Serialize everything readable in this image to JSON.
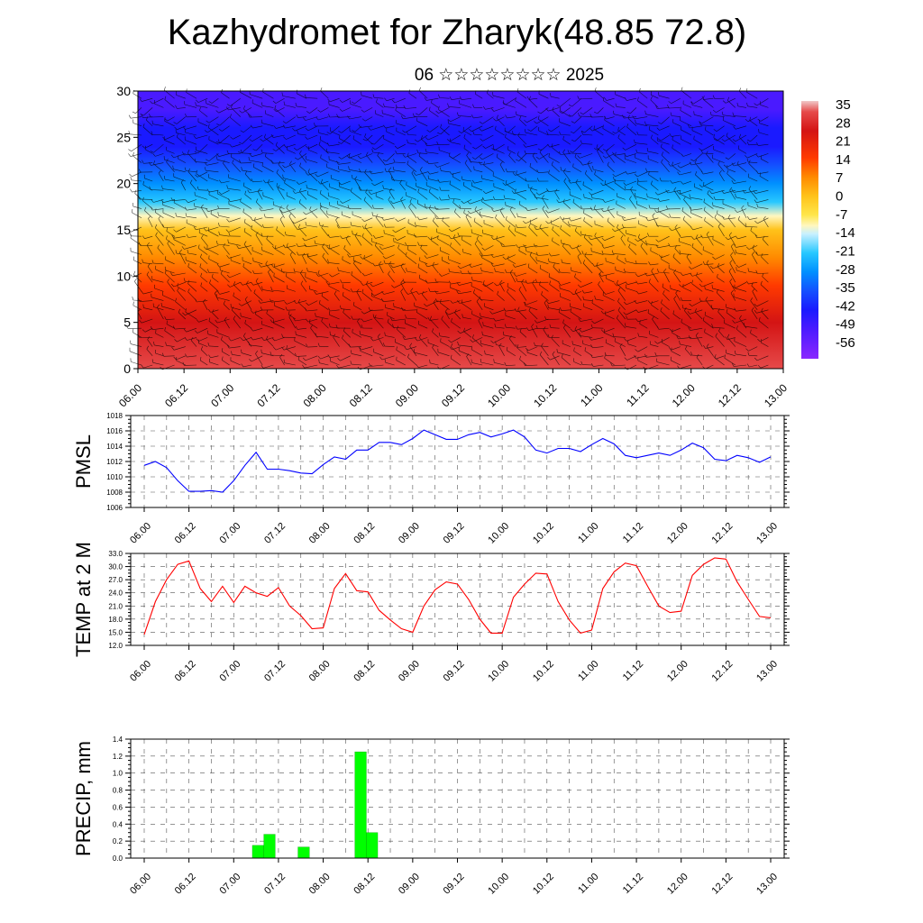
{
  "title": "Kazhydromet for Zharyk(48.85 72.8)",
  "subtitle": "06 ☆☆☆☆☆☆☆☆ 2025",
  "x_tick_labels": [
    "06.00",
    "06.12",
    "07.00",
    "07.12",
    "08.00",
    "08.12",
    "09.00",
    "09.12",
    "10.00",
    "10.12",
    "11.00",
    "11.12",
    "12.00",
    "12.12",
    "13.00"
  ],
  "chart_data": [
    {
      "type": "heatmap",
      "title": "",
      "ylim": [
        0,
        30
      ],
      "y_ticks": [
        0,
        5,
        10,
        15,
        20,
        25,
        30
      ],
      "colorbar": {
        "labels": [
          "35",
          "28",
          "21",
          "14",
          "7",
          "0",
          "-7",
          "-14",
          "-21",
          "-28",
          "-35",
          "-42",
          "-49",
          "-56"
        ],
        "stops": [
          {
            "v": 35,
            "c": "#f0c8c8"
          },
          {
            "v": 31,
            "c": "#e64a4a"
          },
          {
            "v": 24,
            "c": "#d41414"
          },
          {
            "v": 14,
            "c": "#ff3a00"
          },
          {
            "v": 7,
            "c": "#ff8a00"
          },
          {
            "v": 0,
            "c": "#ffc21a"
          },
          {
            "v": -7,
            "c": "#ffe64a"
          },
          {
            "v": -11,
            "c": "#fff7c0"
          },
          {
            "v": -14,
            "c": "#c8f0ff"
          },
          {
            "v": -21,
            "c": "#28c8ff"
          },
          {
            "v": -28,
            "c": "#0090ff"
          },
          {
            "v": -35,
            "c": "#1450ff"
          },
          {
            "v": -42,
            "c": "#1a1aff"
          },
          {
            "v": -49,
            "c": "#4a1aff"
          },
          {
            "v": -60,
            "c": "#8a28ff"
          }
        ]
      },
      "temperature_profile": [
        {
          "height": 0,
          "value": 24
        },
        {
          "height": 5,
          "value": 18
        },
        {
          "height": 9,
          "value": 10
        },
        {
          "height": 12,
          "value": 0
        },
        {
          "height": 15,
          "value": -7
        },
        {
          "height": 16.5,
          "value": -14
        },
        {
          "height": 18,
          "value": -24
        },
        {
          "height": 20,
          "value": -32
        },
        {
          "height": 22,
          "value": -40
        },
        {
          "height": 24,
          "value": -49
        },
        {
          "height": 26,
          "value": -48
        },
        {
          "height": 28,
          "value": -52
        },
        {
          "height": 30,
          "value": -58
        }
      ]
    },
    {
      "type": "line",
      "ylabel": "PMSL",
      "ylim": [
        1006,
        1018
      ],
      "y_ticks": [
        "1006",
        "1008",
        "1010",
        "1012",
        "1014",
        "1016",
        "1018"
      ],
      "color": "#0000ff",
      "values": [
        1011.5,
        1012.0,
        1011.2,
        1009.5,
        1008.1,
        1008.1,
        1008.2,
        1008.0,
        1009.5,
        1011.5,
        1013.2,
        1011.0,
        1011.0,
        1010.8,
        1010.5,
        1010.4,
        1011.6,
        1012.6,
        1012.3,
        1013.5,
        1013.5,
        1014.5,
        1014.5,
        1014.2,
        1015.0,
        1016.1,
        1015.5,
        1014.9,
        1014.9,
        1015.5,
        1015.8,
        1015.2,
        1015.6,
        1016.1,
        1015.2,
        1013.5,
        1013.1,
        1013.7,
        1013.7,
        1013.3,
        1014.2,
        1015.0,
        1014.3,
        1012.8,
        1012.5,
        1012.8,
        1013.1,
        1012.8,
        1013.5,
        1014.4,
        1013.8,
        1012.3,
        1012.1,
        1012.8,
        1012.5,
        1011.9,
        1012.6
      ]
    },
    {
      "type": "line",
      "ylabel": "TEMP at 2 M",
      "ylim": [
        12,
        33
      ],
      "y_ticks": [
        "12.0",
        "15.0",
        "18.0",
        "21.0",
        "24.0",
        "27.0",
        "30.0",
        "33.0"
      ],
      "color": "#ff0000",
      "values": [
        14.5,
        22.0,
        27.0,
        30.5,
        31.3,
        25.0,
        22.0,
        25.5,
        21.8,
        25.5,
        24.0,
        23.2,
        25.2,
        21.0,
        18.8,
        15.8,
        16.0,
        25.0,
        28.4,
        24.5,
        24.2,
        20.0,
        17.8,
        15.8,
        15.0,
        21.0,
        24.7,
        26.5,
        26.0,
        22.5,
        18.0,
        14.8,
        14.8,
        23.0,
        26.0,
        28.5,
        28.3,
        22.0,
        17.8,
        14.8,
        15.5,
        25.0,
        28.8,
        30.8,
        30.2,
        25.5,
        21.0,
        19.5,
        19.8,
        28.0,
        30.5,
        32.0,
        31.7,
        26.5,
        22.5,
        18.6,
        18.3
      ]
    },
    {
      "type": "bar",
      "ylabel": "PRECIP, mm",
      "ylim": [
        0,
        1.4
      ],
      "y_ticks": [
        "0.0",
        "0.2",
        "0.4",
        "0.6",
        "0.8",
        "1.0",
        "1.2",
        "1.4"
      ],
      "color": "#00ff00",
      "values": [
        0,
        0,
        0,
        0,
        0,
        0,
        0,
        0,
        0,
        0,
        0.15,
        0.28,
        0,
        0,
        0.13,
        0,
        0,
        0,
        0,
        1.25,
        0.3,
        0,
        0,
        0,
        0,
        0,
        0,
        0,
        0,
        0,
        0,
        0,
        0,
        0,
        0,
        0,
        0,
        0,
        0,
        0,
        0,
        0,
        0,
        0,
        0,
        0,
        0,
        0,
        0,
        0,
        0,
        0,
        0,
        0,
        0,
        0
      ]
    }
  ]
}
